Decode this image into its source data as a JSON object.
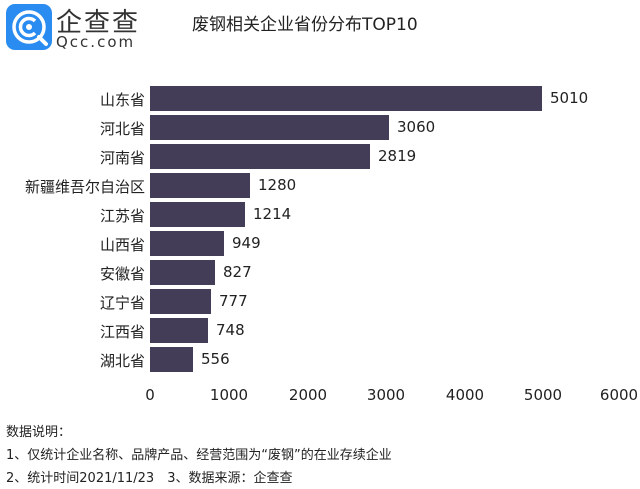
{
  "brand": {
    "name_cn": "企查查",
    "name_en": "Qcc.com",
    "icon": "qcc-logo-icon",
    "color": "#2a8cf0"
  },
  "title": "废钢相关企业省份分布TOP10",
  "chart_data": {
    "type": "bar",
    "orientation": "horizontal",
    "title": "废钢相关企业省份分布TOP10",
    "categories": [
      "山东省",
      "河北省",
      "河南省",
      "新疆维吾尔自治区",
      "江苏省",
      "山西省",
      "安徽省",
      "辽宁省",
      "江西省",
      "湖北省"
    ],
    "values": [
      5010,
      3060,
      2819,
      1280,
      1214,
      949,
      827,
      777,
      748,
      556
    ],
    "value_labels": [
      "5010",
      "3060",
      "2819",
      "1280",
      "1214",
      "949",
      "827",
      "777",
      "748",
      "556"
    ],
    "xlabel": "",
    "ylabel": "",
    "xlim": [
      0,
      6000
    ],
    "xticks": [
      "0",
      "1000",
      "2000",
      "3000",
      "4000",
      "5000",
      "6000"
    ],
    "grid": false,
    "bar_color": "#433d58"
  },
  "notes": {
    "heading": "数据说明：",
    "line1": "1、仅统计企业名称、品牌产品、经营范围为“废钢”的在业存续企业",
    "line2": "2、统计时间2021/11/23　3、数据来源：企查查"
  }
}
